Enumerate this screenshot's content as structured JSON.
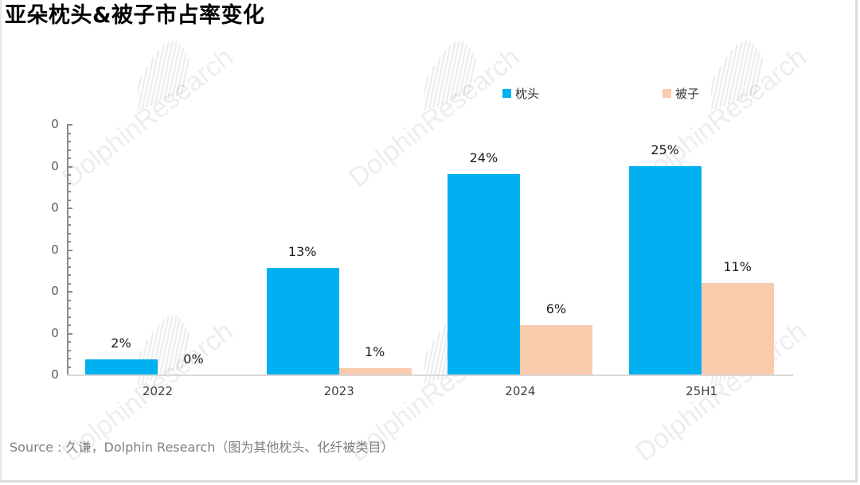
{
  "title": "亚朵枕头&被子市占率变化",
  "legend": [
    {
      "label": "枕头",
      "color": "#00B0F0"
    },
    {
      "label": "被子",
      "color": "#F8CBAD"
    }
  ],
  "y_axis": {
    "tick_labels": [
      "0",
      "0",
      "0",
      "0",
      "0",
      "0",
      "0"
    ]
  },
  "x_axis": {
    "categories": [
      "2022",
      "2023",
      "2024",
      "25H1"
    ]
  },
  "watermark": "DolphinResearch",
  "source": "Source : 久谦，Dolphin Research（图为其他枕头、化纤被类目）",
  "chart_data": {
    "type": "bar",
    "title": "亚朵枕头&被子市占率变化",
    "categories": [
      "2022",
      "2023",
      "2024",
      "25H1"
    ],
    "series": [
      {
        "name": "枕头",
        "color": "#00B0F0",
        "values": [
          1.9,
          12.9,
          24.1,
          25.0
        ],
        "labels": [
          "2%",
          "13%",
          "24%",
          "25%"
        ]
      },
      {
        "name": "被子",
        "color": "#F8CBAD",
        "values": [
          0.0,
          0.9,
          6.0,
          11.0
        ],
        "labels": [
          "0%",
          "1%",
          "6%",
          "11%"
        ]
      }
    ],
    "xlabel": "",
    "ylabel": "",
    "ytick_labels": [
      "0",
      "0",
      "0",
      "0",
      "0",
      "0",
      "0"
    ],
    "ylim": [
      0,
      30
    ],
    "grid": false,
    "legend_position": "top-right",
    "units": "%"
  }
}
